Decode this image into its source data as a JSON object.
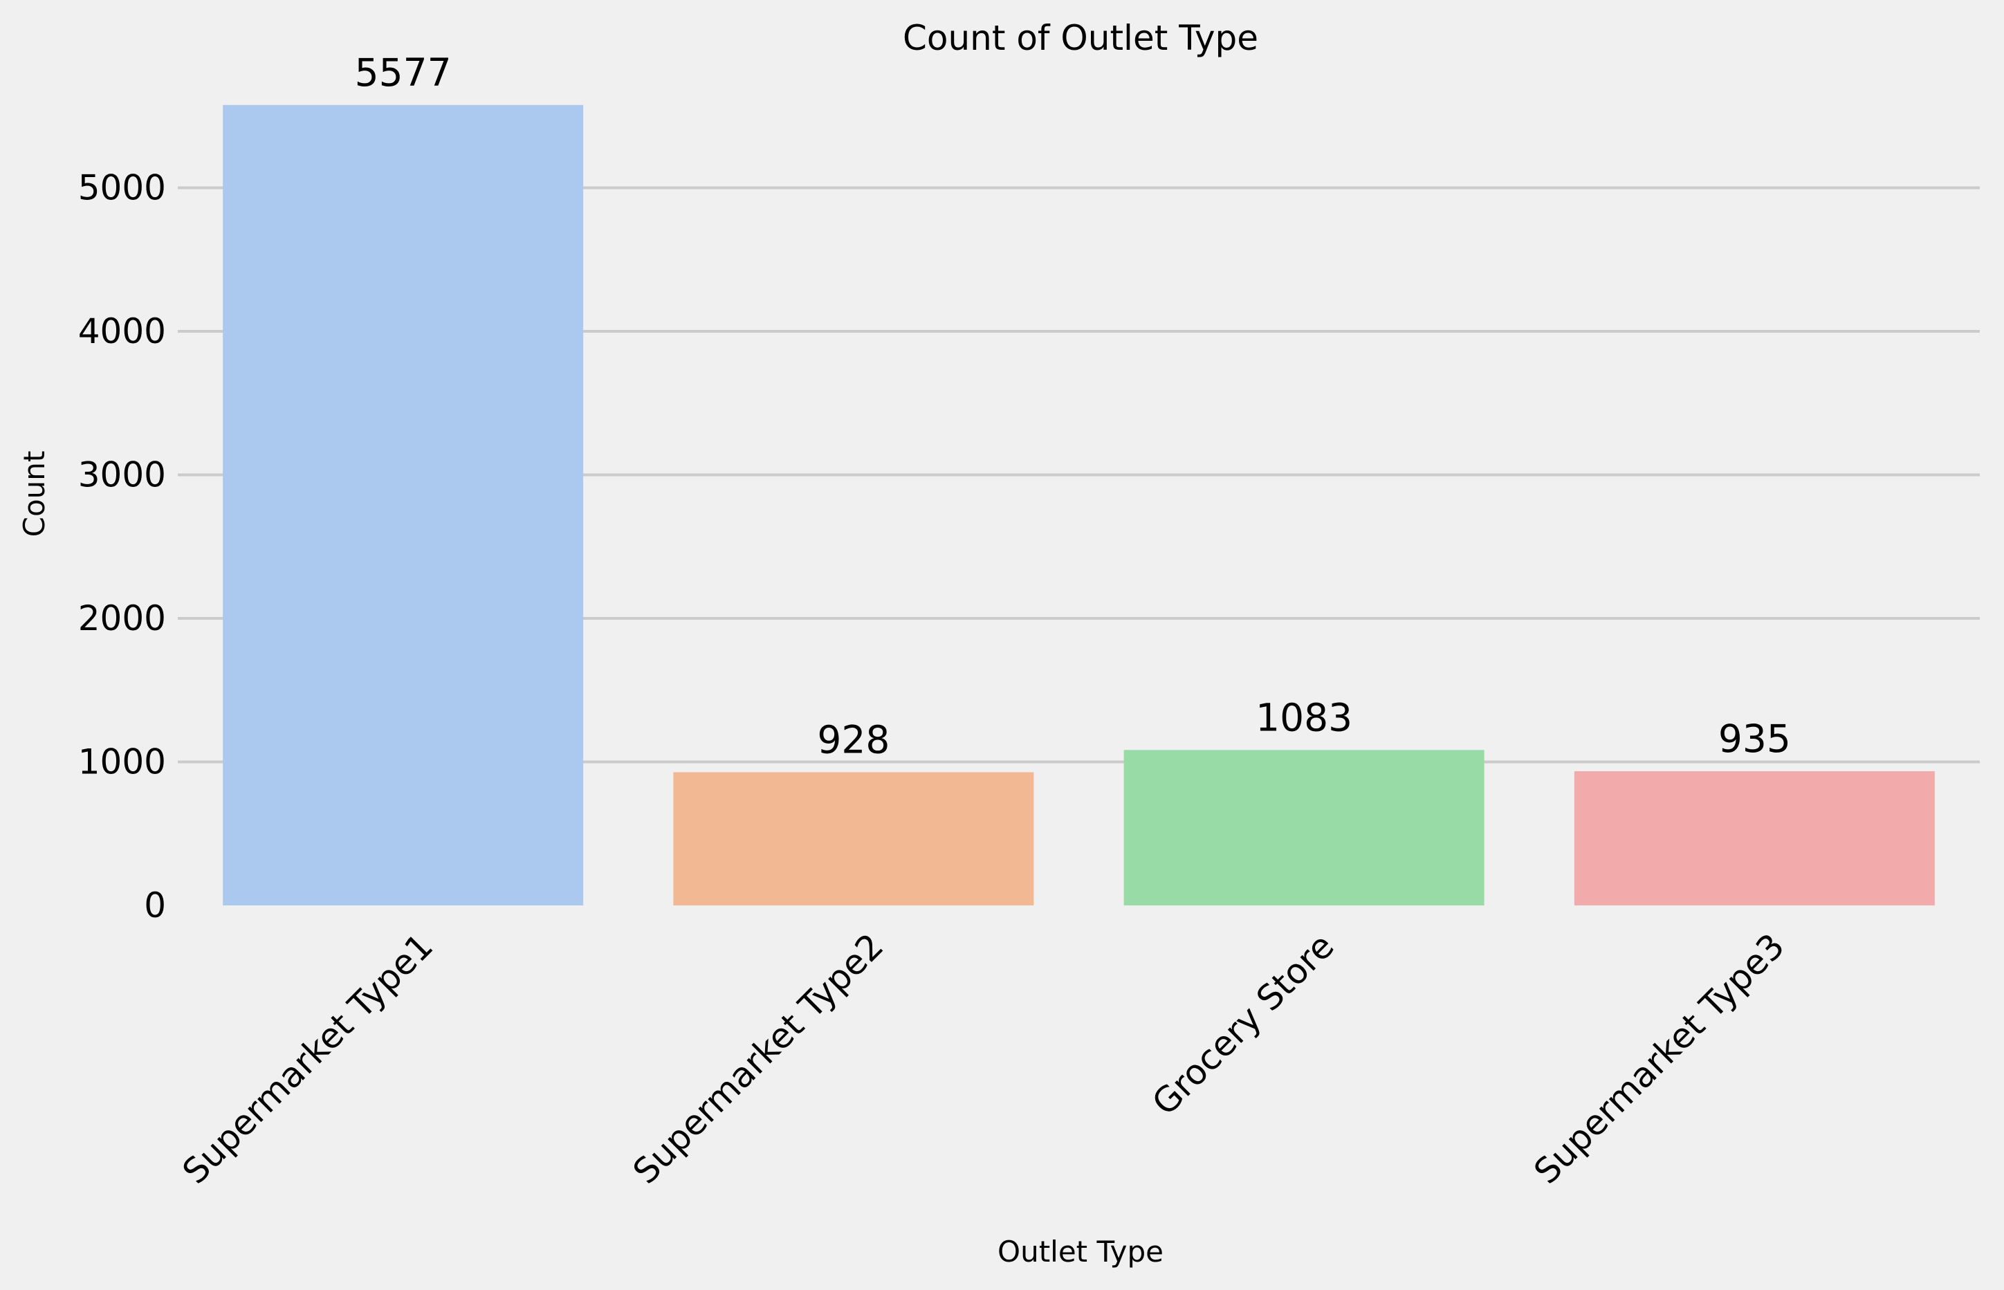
{
  "chart_data": {
    "type": "bar",
    "title": "Count of Outlet Type",
    "xlabel": "Outlet Type",
    "ylabel": "Count",
    "categories": [
      "Supermarket Type1",
      "Supermarket Type2",
      "Grocery Store",
      "Supermarket Type3"
    ],
    "values": [
      5577,
      928,
      1083,
      935
    ],
    "ylim": [
      0,
      5850
    ],
    "yticks": [
      0,
      1000,
      2000,
      3000,
      4000,
      5000
    ],
    "colors": [
      "#abc9ee",
      "#f2b893",
      "#99dba7",
      "#f3aaaa"
    ],
    "grid": "horizontal",
    "background": "#f0f0f0"
  }
}
